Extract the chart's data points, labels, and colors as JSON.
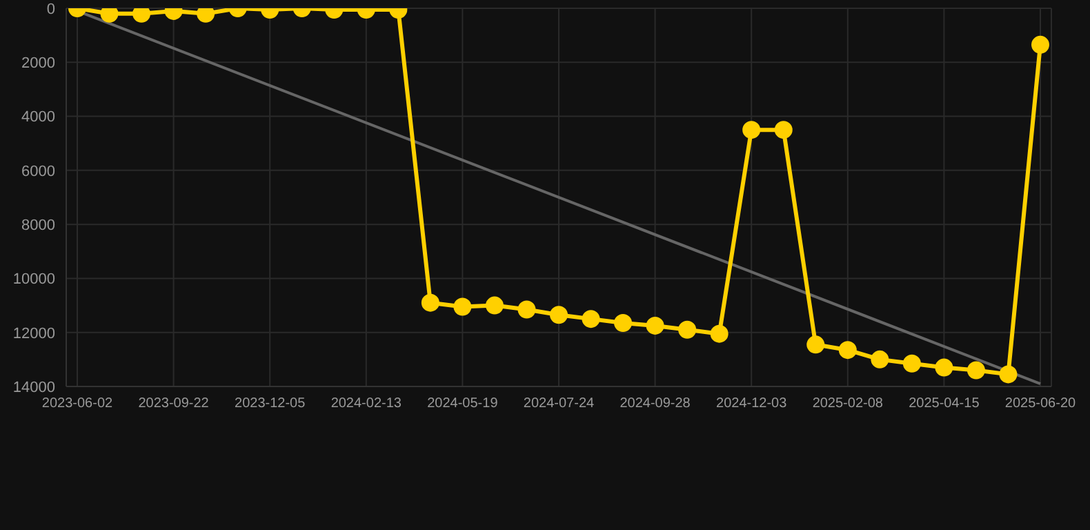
{
  "chart_data": {
    "type": "line",
    "categories": [
      "2023-06-02",
      null,
      null,
      "2023-09-22",
      null,
      null,
      "2023-12-05",
      null,
      null,
      "2024-02-13",
      null,
      null,
      "2024-05-19",
      null,
      null,
      "2024-07-24",
      null,
      null,
      "2024-09-28",
      null,
      null,
      "2024-12-03",
      null,
      null,
      "2025-02-08",
      null,
      null,
      "2025-04-15",
      null,
      null,
      "2025-06-20"
    ],
    "series": [
      {
        "color": "#ffd000",
        "marker": "circle",
        "values": [
          0,
          200,
          200,
          100,
          200,
          0,
          50,
          0,
          50,
          50,
          50,
          10900,
          11050,
          11000,
          11150,
          11350,
          11500,
          11650,
          11750,
          11900,
          12050,
          4500,
          4500,
          12450,
          12650,
          13000,
          13150,
          13300,
          13400,
          13550,
          1350
        ]
      },
      {
        "color": "#666666",
        "marker": "none",
        "values": [
          100,
          null,
          null,
          null,
          null,
          null,
          null,
          null,
          null,
          null,
          null,
          null,
          null,
          null,
          null,
          null,
          null,
          null,
          null,
          null,
          null,
          null,
          null,
          null,
          null,
          null,
          null,
          null,
          null,
          null,
          13900
        ]
      }
    ],
    "ylim": [
      14000,
      0
    ],
    "yticks": [
      0,
      2000,
      4000,
      6000,
      8000,
      10000,
      12000,
      14000
    ],
    "grid": true
  }
}
